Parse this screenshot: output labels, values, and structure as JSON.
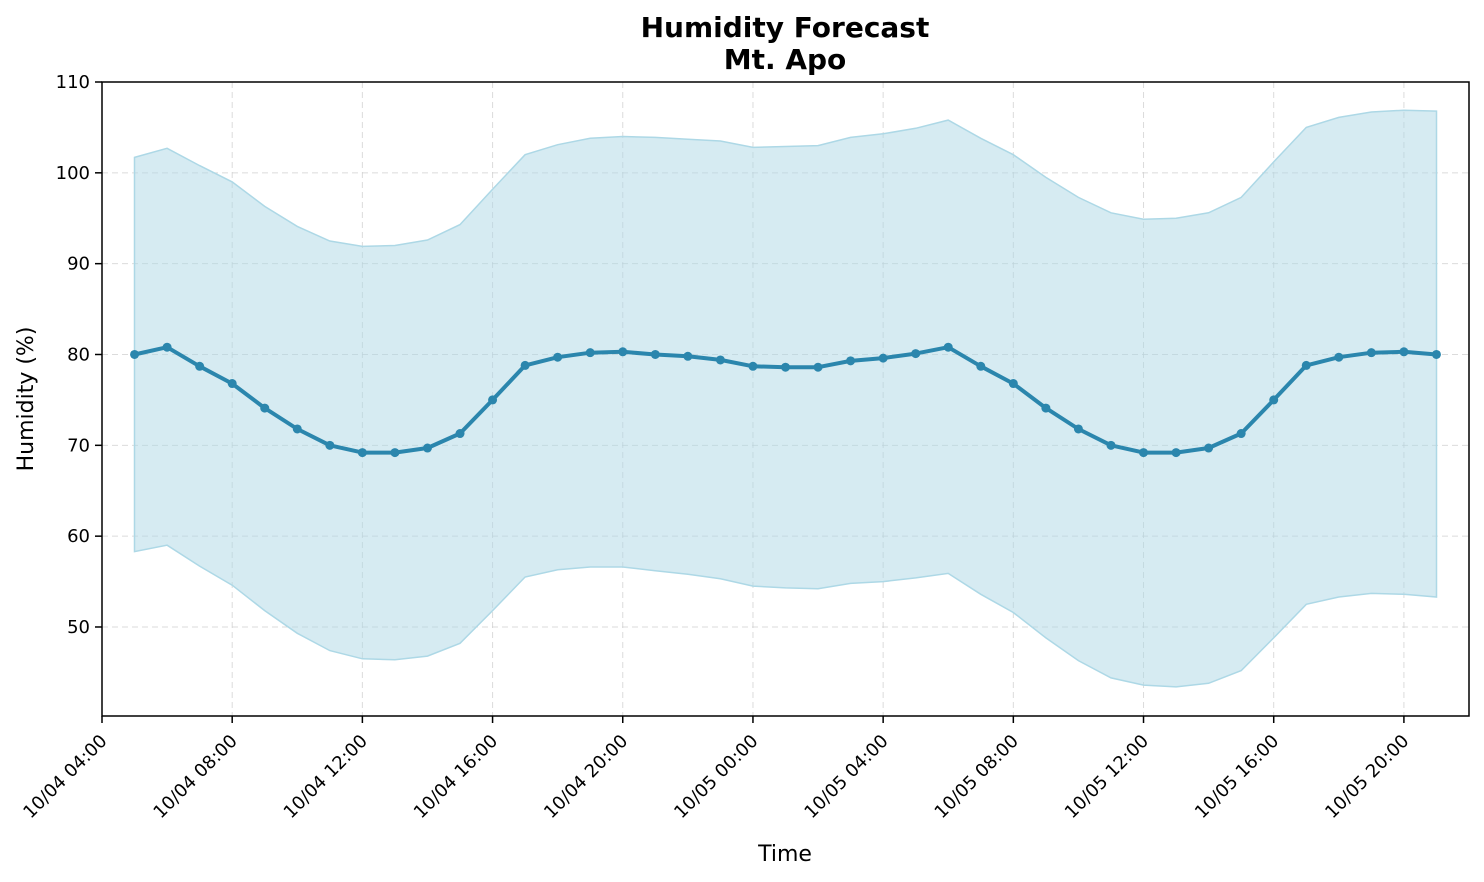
{
  "chart_data": {
    "type": "line",
    "title": "Humidity Forecast",
    "subtitle": "Mt. Apo",
    "xlabel": "Time",
    "ylabel": "Humidity (%)",
    "ylim": [
      40.2,
      110
    ],
    "yticks": [
      50,
      60,
      70,
      80,
      90,
      100,
      110
    ],
    "xticks": [
      "10/04 04:00",
      "10/04 08:00",
      "10/04 12:00",
      "10/04 16:00",
      "10/04 20:00",
      "10/05 00:00",
      "10/05 04:00",
      "10/05 08:00",
      "10/05 12:00",
      "10/05 16:00",
      "10/05 20:00"
    ],
    "grid": true,
    "x": [
      "10/04 05:00",
      "10/04 06:00",
      "10/04 07:00",
      "10/04 08:00",
      "10/04 09:00",
      "10/04 10:00",
      "10/04 11:00",
      "10/04 12:00",
      "10/04 13:00",
      "10/04 14:00",
      "10/04 15:00",
      "10/04 16:00",
      "10/04 17:00",
      "10/04 18:00",
      "10/04 19:00",
      "10/04 20:00",
      "10/04 21:00",
      "10/04 22:00",
      "10/04 23:00",
      "10/05 00:00",
      "10/05 01:00",
      "10/05 02:00",
      "10/05 03:00",
      "10/05 04:00",
      "10/05 05:00",
      "10/05 06:00",
      "10/05 07:00",
      "10/05 08:00",
      "10/05 09:00",
      "10/05 10:00",
      "10/05 11:00",
      "10/05 12:00",
      "10/05 13:00",
      "10/05 14:00",
      "10/05 15:00",
      "10/05 16:00",
      "10/05 17:00",
      "10/05 18:00",
      "10/05 19:00",
      "10/05 20:00",
      "10/05 21:00"
    ],
    "series": [
      {
        "values": [
          80.0,
          80.8,
          78.7,
          76.8,
          74.1,
          71.8,
          70.0,
          69.2,
          69.2,
          69.7,
          71.3,
          75.0,
          78.8,
          79.7,
          80.2,
          80.3,
          80.0,
          79.8,
          79.4,
          78.7,
          78.6,
          78.6,
          79.3,
          79.6,
          80.1,
          80.8,
          78.7,
          76.8,
          74.1,
          71.8,
          70.0,
          69.2,
          69.2,
          69.7,
          71.3,
          75.0,
          78.8,
          79.7,
          80.2,
          80.3,
          80.0
        ],
        "upper": [
          101.7,
          102.7,
          100.8,
          99.0,
          96.3,
          94.1,
          92.5,
          91.9,
          92.0,
          92.6,
          94.3,
          98.2,
          102.0,
          103.1,
          103.8,
          104.0,
          103.9,
          103.7,
          103.5,
          102.8,
          102.9,
          103.0,
          103.9,
          104.3,
          104.9,
          105.8,
          103.8,
          102.0,
          99.5,
          97.3,
          95.6,
          94.9,
          95.0,
          95.6,
          97.3,
          101.2,
          105.0,
          106.1,
          106.7,
          106.9,
          106.8
        ],
        "lower": [
          58.3,
          59.0,
          56.7,
          54.6,
          51.8,
          49.3,
          47.4,
          46.5,
          46.4,
          46.8,
          48.2,
          51.8,
          55.5,
          56.3,
          56.6,
          56.6,
          56.2,
          55.8,
          55.3,
          54.5,
          54.3,
          54.2,
          54.8,
          55.0,
          55.4,
          55.9,
          53.6,
          51.6,
          48.8,
          46.3,
          44.4,
          43.6,
          43.4,
          43.8,
          45.2,
          48.8,
          52.5,
          53.3,
          53.7,
          53.6,
          53.3
        ],
        "color": "#2b86ad",
        "band_color": "#add8e6"
      }
    ]
  }
}
